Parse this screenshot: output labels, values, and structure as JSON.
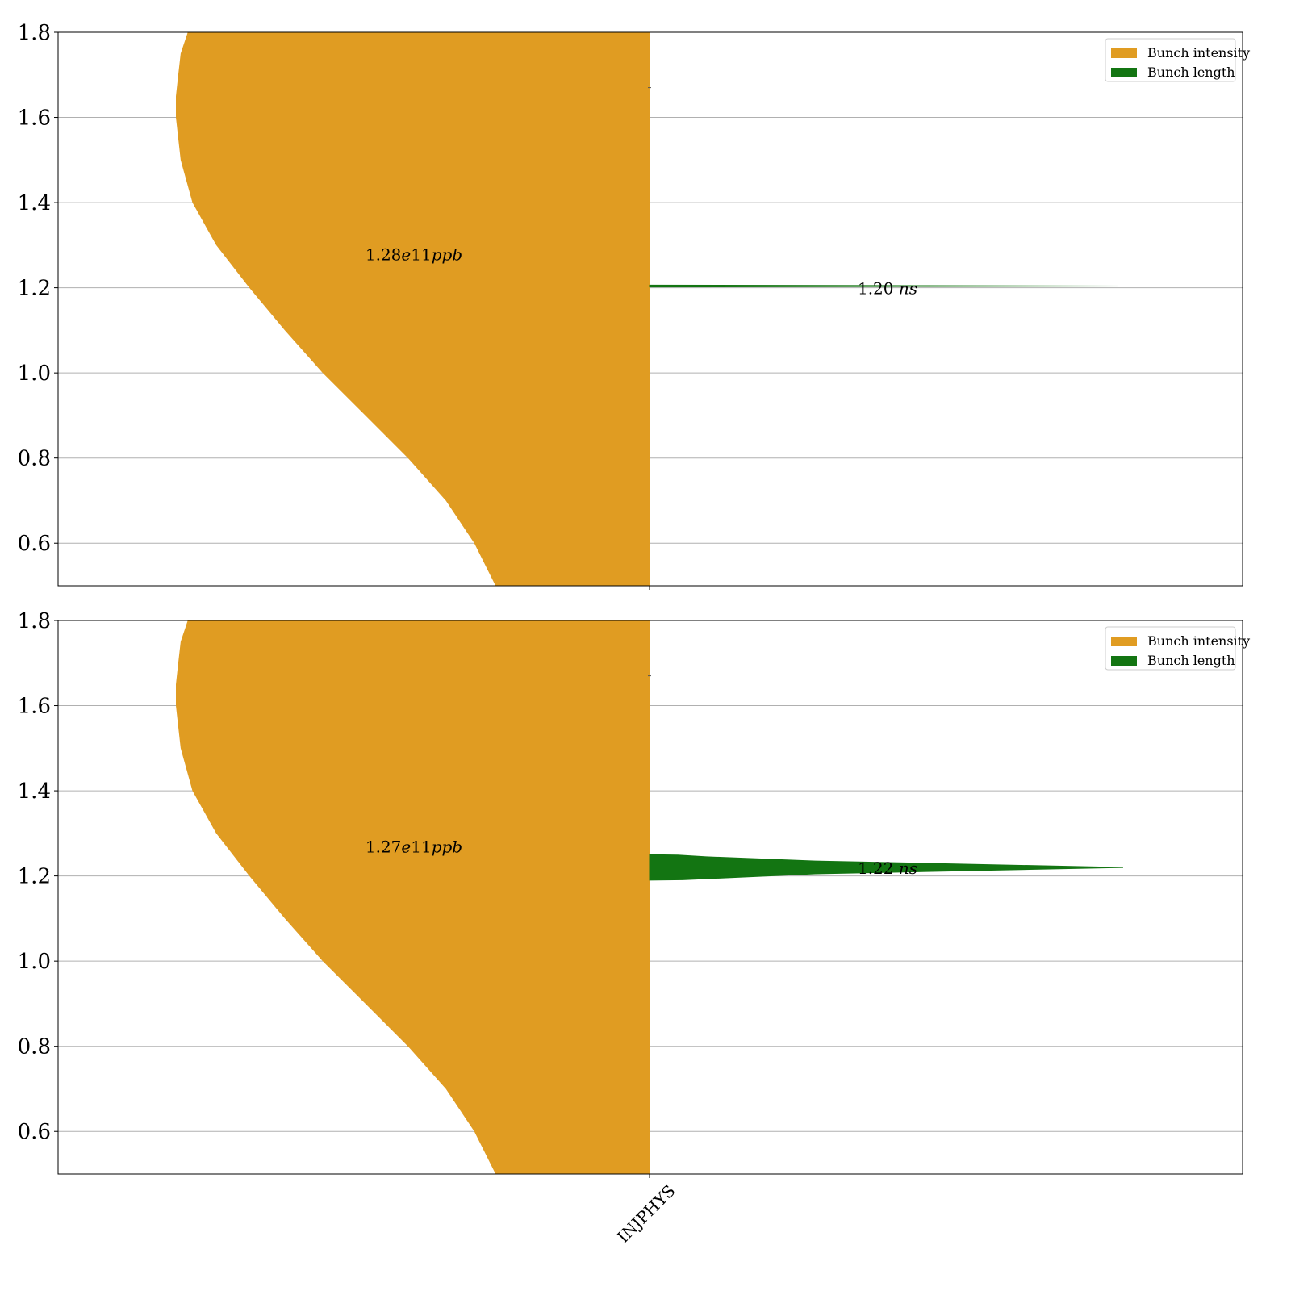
{
  "chart_data": [
    {
      "type": "violin",
      "categories": [
        "INJPHYS"
      ],
      "ylim": [
        0.5,
        1.8
      ],
      "yticks": [
        "0.6",
        "0.8",
        "1.0",
        "1.2",
        "1.4",
        "1.6",
        "1.8"
      ],
      "grid": true,
      "legend_position": "top-right",
      "series": [
        {
          "name": "Bunch intensity",
          "color": "#e09c22",
          "side": "left",
          "median": 1.28,
          "annotation": "1.28e11ppb",
          "annotation_parts": [
            "1.28",
            "e",
            "11",
            "ppb"
          ],
          "density": [
            [
              0.5,
              0.325
            ],
            [
              0.6,
              0.37
            ],
            [
              0.7,
              0.43
            ],
            [
              0.8,
              0.51
            ],
            [
              0.9,
              0.6
            ],
            [
              1.0,
              0.69
            ],
            [
              1.1,
              0.77
            ],
            [
              1.2,
              0.845
            ],
            [
              1.3,
              0.915
            ],
            [
              1.4,
              0.965
            ],
            [
              1.5,
              0.99
            ],
            [
              1.6,
              1.0
            ],
            [
              1.65,
              1.0
            ],
            [
              1.7,
              0.995
            ],
            [
              1.75,
              0.99
            ],
            [
              1.8,
              0.975
            ]
          ]
        },
        {
          "name": "Bunch length",
          "color": "#137512",
          "side": "right",
          "median": 1.2,
          "annotation": "1.20 ns",
          "annotation_parts": [
            "1.20 ",
            "ns"
          ],
          "density": [
            [
              1.202,
              0.0
            ],
            [
              1.204,
              1.0
            ],
            [
              1.206,
              0.0
            ]
          ]
        }
      ]
    },
    {
      "type": "violin",
      "categories": [
        "INJPHYS"
      ],
      "ylim": [
        0.5,
        1.8
      ],
      "yticks": [
        "0.6",
        "0.8",
        "1.0",
        "1.2",
        "1.4",
        "1.6",
        "1.8"
      ],
      "xtick_labels": [
        "INJPHYS"
      ],
      "grid": true,
      "legend_position": "top-right",
      "series": [
        {
          "name": "Bunch intensity",
          "color": "#e09c22",
          "side": "left",
          "median": 1.27,
          "annotation": "1.27e11ppb",
          "annotation_parts": [
            "1.27",
            "e",
            "11",
            "ppb"
          ],
          "density": [
            [
              0.5,
              0.325
            ],
            [
              0.6,
              0.37
            ],
            [
              0.7,
              0.43
            ],
            [
              0.8,
              0.51
            ],
            [
              0.9,
              0.6
            ],
            [
              1.0,
              0.69
            ],
            [
              1.1,
              0.77
            ],
            [
              1.2,
              0.845
            ],
            [
              1.3,
              0.915
            ],
            [
              1.4,
              0.965
            ],
            [
              1.5,
              0.99
            ],
            [
              1.6,
              1.0
            ],
            [
              1.65,
              1.0
            ],
            [
              1.7,
              0.995
            ],
            [
              1.75,
              0.99
            ],
            [
              1.8,
              0.975
            ]
          ]
        },
        {
          "name": "Bunch length",
          "color": "#137512",
          "side": "right",
          "median": 1.22,
          "annotation": "1.22 ns",
          "annotation_parts": [
            "1.22 ",
            "ns"
          ],
          "density": [
            [
              1.19,
              0.0
            ],
            [
              1.191,
              0.07
            ],
            [
              1.205,
              0.35
            ],
            [
              1.22,
              1.0
            ],
            [
              1.235,
              0.35
            ],
            [
              1.245,
              0.12
            ],
            [
              1.249,
              0.06
            ],
            [
              1.25,
              0.0
            ]
          ]
        }
      ]
    }
  ]
}
